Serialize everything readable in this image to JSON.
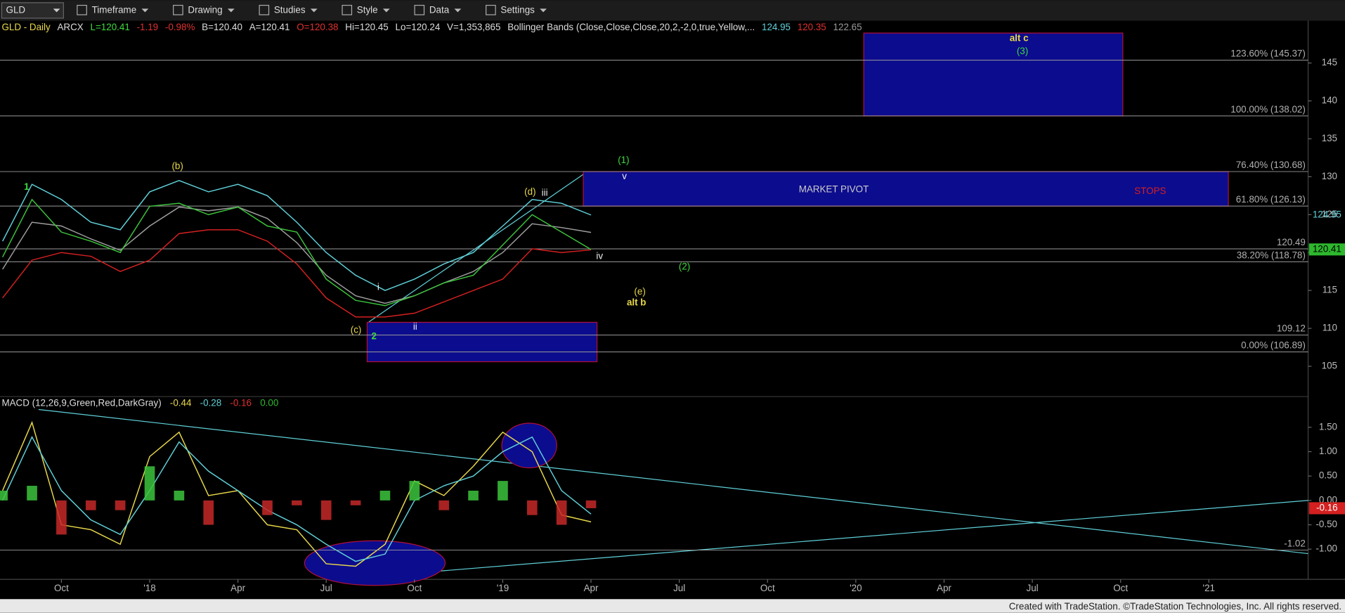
{
  "toolbar": {
    "symbol": "GLD",
    "menus": [
      "Timeframe",
      "Drawing",
      "Studies",
      "Style",
      "Data",
      "Settings"
    ]
  },
  "chart_data": [
    {
      "type": "line",
      "header": [
        "GLD - Daily",
        "ARCX",
        "L=120.41",
        "-1.19",
        "-0.98%",
        "B=120.40",
        "A=120.41",
        "O=120.38",
        "Hi=120.45",
        "Lo=120.24",
        "V=1,353,865",
        "Bollinger Bands (Close,Close,Close,20,2,-2,0,true,Yellow,...",
        "124.95",
        "120.35",
        "122.65"
      ],
      "categories": [
        null,
        null,
        "Oct",
        null,
        null,
        "'18",
        null,
        null,
        "Apr",
        null,
        null,
        "Jul",
        null,
        null,
        "Oct",
        null,
        null,
        "'19",
        null,
        null,
        "Apr",
        null,
        null,
        "Jul",
        null,
        null,
        "Oct",
        null,
        null,
        "'20",
        null,
        null,
        "Apr",
        null,
        null,
        "Jul",
        null,
        null,
        "Oct",
        null,
        null,
        "'21",
        null,
        null
      ],
      "series": [
        {
          "color": "#9e9e9e",
          "values": [
            117.8,
            124,
            123.5,
            121.8,
            120.3,
            123.5,
            126,
            125.5,
            126,
            124.5,
            121.3,
            117,
            114.3,
            113.3,
            114.3,
            116,
            117.5,
            120,
            123.8,
            123.3,
            122.65,
            null,
            null,
            null,
            null,
            null,
            null,
            null,
            null,
            null,
            null,
            null,
            null,
            null,
            null,
            null,
            null,
            null,
            null,
            null,
            null,
            null,
            null,
            null
          ]
        },
        {
          "color": "#5fd0d8",
          "values": [
            121.5,
            129,
            127,
            124,
            123,
            128,
            129.5,
            128,
            129,
            127.5,
            124,
            120,
            117,
            115,
            116.5,
            118.5,
            120,
            123.5,
            127,
            126.5,
            124.95,
            null,
            null,
            null,
            null,
            null,
            null,
            null,
            null,
            null,
            null,
            null,
            null,
            null,
            null,
            null,
            null,
            null,
            null,
            null,
            null,
            null,
            null,
            null
          ]
        },
        {
          "color": "#d42020",
          "values": [
            114,
            119,
            120,
            119.5,
            117.5,
            119,
            122.5,
            123,
            123,
            121.5,
            118.5,
            114,
            111.5,
            111.5,
            112,
            113.5,
            115,
            116.5,
            120.5,
            120,
            120.35,
            null,
            null,
            null,
            null,
            null,
            null,
            null,
            null,
            null,
            null,
            null,
            null,
            null,
            null,
            null,
            null,
            null,
            null,
            null,
            null,
            null,
            null,
            null
          ]
        },
        {
          "color": "#3cc43c",
          "values": [
            119.4,
            127,
            122.7,
            121.5,
            120,
            126.1,
            126.5,
            125,
            126,
            123.5,
            122.7,
            116.5,
            113.7,
            113,
            114.3,
            116,
            117,
            121,
            125,
            122.7,
            120.41,
            null,
            null,
            null,
            null,
            null,
            null,
            null,
            null,
            null,
            null,
            null,
            null,
            null,
            null,
            null,
            null,
            null,
            null,
            null,
            null,
            null,
            null,
            null
          ]
        }
      ],
      "ylim": [
        101,
        150.8
      ],
      "yticks": [
        105,
        110,
        115,
        120,
        125,
        130,
        135,
        140,
        145
      ],
      "levels": [
        {
          "value": 145.37,
          "label": "123.60% (145.37)"
        },
        {
          "value": 138.02,
          "label": "100.00% (138.02)"
        },
        {
          "value": 130.68,
          "label": "76.40% (130.68)"
        },
        {
          "value": 126.13,
          "label": "61.80% (126.13)"
        },
        120.49,
        {
          "value": 118.78,
          "label": "38.20% (118.78)"
        },
        109.12,
        {
          "value": 106.89,
          "label": "0.00% (106.89)"
        }
      ],
      "price_labels": [
        124.95,
        120.41
      ],
      "zones": [
        {
          "low": 138.02,
          "high": 148.95
        },
        {
          "low": 126.13,
          "high": 130.68
        },
        {
          "low": 105.6,
          "high": 110.8
        }
      ],
      "annotations": [
        "1",
        "(b)",
        "(c)",
        "2",
        "i",
        "ii",
        "(d)",
        "iii",
        "(1)",
        "v",
        "iv",
        "(2)",
        "(e)",
        "alt b",
        "alt c",
        "(3)",
        "MARKET PIVOT",
        "STOPS"
      ]
    },
    {
      "type": "line",
      "header": "MACD (12,26,9,Green,Red,DarkGray)",
      "header_values": [
        -0.44,
        -0.28,
        -0.16,
        {
          "value": 0,
          "label": "0.00"
        }
      ],
      "series": [
        {
          "color": "#e8d84a",
          "values": [
            0.2,
            1.6,
            -0.5,
            -0.6,
            -0.9,
            0.9,
            1.4,
            0.1,
            0.2,
            -0.5,
            -0.6,
            -1.3,
            -1.35,
            -0.9,
            0.4,
            0.1,
            0.7,
            1.4,
            1.0,
            -0.3,
            -0.44,
            null,
            null,
            null,
            null,
            null,
            null,
            null,
            null,
            null,
            null,
            null,
            null,
            null,
            null,
            null,
            null,
            null,
            null,
            null,
            null,
            null,
            null,
            null
          ]
        },
        {
          "color": "#5fd0d8",
          "values": [
            0.0,
            1.3,
            0.2,
            -0.4,
            -0.7,
            0.2,
            1.2,
            0.6,
            0.2,
            -0.2,
            -0.5,
            -0.9,
            -1.25,
            -1.1,
            0.0,
            0.3,
            0.5,
            1.0,
            1.3,
            0.2,
            -0.28,
            null,
            null,
            null,
            null,
            null,
            null,
            null,
            null,
            null,
            null,
            null,
            null,
            null,
            null,
            null,
            null,
            null,
            null,
            null,
            null,
            null,
            null,
            null
          ]
        },
        {
          "style": "bar",
          "colors": [
            "#3cc43c",
            "#c62828"
          ],
          "values": [
            0.2,
            0.3,
            -0.7,
            -0.2,
            -0.2,
            0.7,
            0.2,
            -0.5,
            0,
            -0.3,
            -0.1,
            -0.4,
            -0.1,
            0.2,
            0.4,
            -0.2,
            0.2,
            0.4,
            -0.3,
            -0.5,
            -0.16,
            null,
            null,
            null,
            null,
            null,
            null,
            null,
            null,
            null,
            null,
            null,
            null,
            null,
            null,
            null,
            null,
            null,
            null,
            null,
            null,
            null,
            null,
            null
          ]
        }
      ],
      "ylim": [
        -1.62,
        2.13
      ],
      "yticks": [
        {
          "value": 1.5,
          "label": "1.50"
        },
        {
          "value": 1,
          "label": "1.00"
        },
        {
          "value": 0.5,
          "label": "0.50"
        },
        {
          "value": 0,
          "label": "0.00"
        },
        {
          "value": -0.5,
          "label": "-0.50"
        },
        {
          "value": -1,
          "label": "-1.00"
        }
      ],
      "last_value": -0.16,
      "levels": [
        -1.02
      ]
    }
  ],
  "footer": "Created with TradeStation. ©TradeStation Technologies, Inc. All rights reserved."
}
